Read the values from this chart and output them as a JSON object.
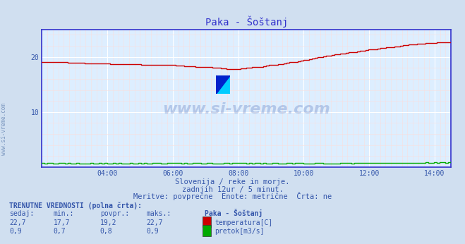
{
  "title": "Paka - Šoštanj",
  "bg_color": "#d0dff0",
  "plot_bg_color": "#ddeeff",
  "grid_color_major": "#ffffff",
  "grid_color_minor": "#f8dede",
  "axis_color": "#3333cc",
  "title_color": "#3333cc",
  "text_color": "#3355aa",
  "watermark": "www.si-vreme.com",
  "sub_text1": "Slovenija / reke in morje.",
  "sub_text2": "zadnjih 12ur / 5 minut.",
  "sub_text3": "Meritve: povprečne  Enote: metrične  Črta: ne",
  "footer_bold": "TRENUTNE VREDNOSTI (polna črta):",
  "footer_cols": [
    "sedaj:",
    "min.:",
    "povpr.:",
    "maks.:"
  ],
  "footer_station": "Paka - Šoštanj",
  "temp_values": [
    22.7,
    17.7,
    19.2,
    22.7
  ],
  "flow_values": [
    0.9,
    0.7,
    0.8,
    0.9
  ],
  "temp_label": "temperatura[C]",
  "flow_label": "pretok[m3/s]",
  "temp_color": "#cc0000",
  "flow_color": "#00aa00",
  "ylim": [
    0,
    25
  ],
  "yticks": [
    10,
    20
  ],
  "xlim_hours": [
    2.0,
    14.5
  ],
  "xtick_hours": [
    4,
    6,
    8,
    10,
    12,
    14
  ],
  "xtick_labels": [
    "04:00",
    "06:00",
    "08:00",
    "10:00",
    "12:00",
    "14:00"
  ],
  "n_points": 145,
  "temp_start_hour": 2.0,
  "temp_end_hour": 14.5,
  "figsize": [
    6.59,
    3.46
  ],
  "dpi": 100
}
